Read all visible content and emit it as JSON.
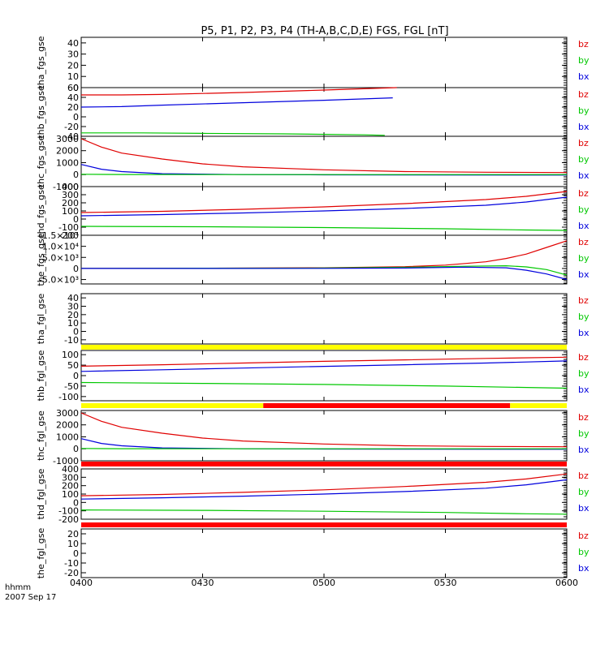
{
  "title": "P5, P1, P2, P3, P4 (TH-A,B,C,D,E) FGS, FGL [nT]",
  "xaxis": {
    "label": "hhmm",
    "date": "2007 Sep 17",
    "ticks": [
      "0400",
      "0430",
      "0500",
      "0530",
      "0600"
    ]
  },
  "colors": {
    "bz": "#e00000",
    "by": "#00c800",
    "bx": "#0000dd",
    "yellow": "#ffff00",
    "red": "#ff0000"
  },
  "chart_data": [
    {
      "type": "line",
      "ylabel": "tha_fgs_gse",
      "ylim": [
        0,
        45
      ],
      "yticks": [
        "0",
        "10",
        "20",
        "30",
        "40"
      ],
      "legend": [
        "bz",
        "by",
        "bx"
      ],
      "series": []
    },
    {
      "type": "line",
      "ylabel": "thb_fgs_gse",
      "ylim": [
        -40,
        60
      ],
      "yticks": [
        "-40",
        "-20",
        "0",
        "20",
        "40",
        "60"
      ],
      "legend": [
        "bz",
        "by",
        "bx"
      ],
      "series": [
        {
          "name": "bz",
          "x": [
            0,
            10,
            20,
            40,
            60,
            78
          ],
          "y": [
            45,
            45,
            46,
            50,
            55,
            60
          ]
        },
        {
          "name": "bx",
          "x": [
            0,
            10,
            20,
            40,
            60,
            77
          ],
          "y": [
            20,
            21,
            24,
            29,
            34,
            39
          ]
        },
        {
          "name": "by",
          "x": [
            0,
            15,
            30,
            50,
            70,
            75
          ],
          "y": [
            -33,
            -33,
            -34,
            -35,
            -37,
            -38
          ]
        }
      ]
    },
    {
      "type": "line",
      "ylabel": "thc_fgs_gse",
      "ylim": [
        -1000,
        3200
      ],
      "yticks": [
        "-1000",
        "0",
        "1000",
        "2000",
        "3000"
      ],
      "legend": [
        "bz",
        "by",
        "bx"
      ],
      "series": [
        {
          "name": "bz",
          "x": [
            0,
            5,
            10,
            20,
            30,
            40,
            60,
            80,
            100,
            120
          ],
          "y": [
            3000,
            2300,
            1800,
            1300,
            900,
            650,
            400,
            250,
            200,
            170
          ]
        },
        {
          "name": "bx",
          "x": [
            0,
            5,
            10,
            20,
            40,
            60,
            80,
            120
          ],
          "y": [
            850,
            450,
            250,
            80,
            0,
            -20,
            -30,
            -40
          ]
        },
        {
          "name": "by",
          "x": [
            0,
            10,
            30,
            60,
            90,
            120
          ],
          "y": [
            30,
            10,
            0,
            0,
            0,
            0
          ]
        }
      ]
    },
    {
      "type": "line",
      "ylabel": "thd_fgs_gse",
      "ylim": [
        -200,
        400
      ],
      "yticks": [
        "-200",
        "-100",
        "0",
        "100",
        "200",
        "300",
        "400"
      ],
      "legend": [
        "bz",
        "by",
        "bx"
      ],
      "series": [
        {
          "name": "bz",
          "x": [
            0,
            20,
            40,
            60,
            80,
            100,
            110,
            120
          ],
          "y": [
            80,
            95,
            120,
            150,
            190,
            240,
            280,
            340
          ]
        },
        {
          "name": "bx",
          "x": [
            0,
            20,
            40,
            60,
            80,
            100,
            110,
            120
          ],
          "y": [
            40,
            55,
            75,
            100,
            130,
            170,
            210,
            270
          ]
        },
        {
          "name": "by",
          "x": [
            0,
            30,
            60,
            90,
            110,
            120
          ],
          "y": [
            -90,
            -95,
            -105,
            -120,
            -135,
            -140
          ]
        }
      ]
    },
    {
      "type": "line",
      "ylabel": "the_fgs_gse",
      "ylim": [
        -7000,
        15000
      ],
      "yticks": [
        "-5.0×10³",
        "0",
        "5.0×10³",
        "1.0×10⁴",
        "1.5×10⁴"
      ],
      "legend": [
        "bz",
        "by",
        "bx"
      ],
      "series": [
        {
          "name": "bz",
          "x": [
            0,
            30,
            60,
            80,
            90,
            100,
            105,
            110,
            115,
            120
          ],
          "y": [
            0,
            100,
            300,
            800,
            1500,
            3000,
            4500,
            6500,
            9500,
            12500
          ]
        },
        {
          "name": "by",
          "x": [
            0,
            30,
            60,
            80,
            95,
            105,
            110,
            115,
            120
          ],
          "y": [
            0,
            100,
            200,
            500,
            1000,
            1200,
            700,
            -500,
            -3000
          ]
        },
        {
          "name": "bx",
          "x": [
            0,
            30,
            60,
            80,
            95,
            105,
            110,
            115,
            120
          ],
          "y": [
            0,
            0,
            50,
            200,
            600,
            300,
            -800,
            -2500,
            -5000
          ]
        }
      ]
    },
    {
      "type": "line",
      "ylabel": "tha_fgl_gse",
      "ylim": [
        -15,
        45
      ],
      "yticks": [
        "-10",
        "0",
        "10",
        "20",
        "30",
        "40"
      ],
      "legend": [
        "bz",
        "by",
        "bx"
      ],
      "series": [],
      "mode_bar": [
        {
          "from": 0,
          "to": 120,
          "color": "yellow"
        }
      ]
    },
    {
      "type": "line",
      "ylabel": "thb_fgl_gse",
      "ylim": [
        -120,
        120
      ],
      "yticks": [
        "-100",
        "-50",
        "0",
        "50",
        "100"
      ],
      "legend": [
        "bz",
        "by",
        "bx"
      ],
      "series": [
        {
          "name": "bz",
          "x": [
            0,
            20,
            40,
            60,
            80,
            100,
            120
          ],
          "y": [
            45,
            52,
            60,
            68,
            75,
            82,
            88
          ]
        },
        {
          "name": "bx",
          "x": [
            0,
            20,
            40,
            60,
            80,
            100,
            120
          ],
          "y": [
            20,
            28,
            36,
            44,
            52,
            60,
            70
          ]
        },
        {
          "name": "by",
          "x": [
            0,
            30,
            60,
            90,
            120
          ],
          "y": [
            -33,
            -37,
            -42,
            -50,
            -60
          ]
        }
      ],
      "mode_bar": [
        {
          "from": 0,
          "to": 45,
          "color": "yellow"
        },
        {
          "from": 45,
          "to": 106,
          "color": "red"
        },
        {
          "from": 106,
          "to": 120,
          "color": "yellow"
        }
      ]
    },
    {
      "type": "line",
      "ylabel": "thc_fgl_gse",
      "ylim": [
        -1000,
        3200
      ],
      "yticks": [
        "-1000",
        "0",
        "1000",
        "2000",
        "3000"
      ],
      "legend": [
        "bz",
        "by",
        "bx"
      ],
      "series": [
        {
          "name": "bz",
          "x": [
            0,
            5,
            10,
            20,
            30,
            40,
            60,
            80,
            100,
            120
          ],
          "y": [
            3000,
            2300,
            1800,
            1300,
            900,
            650,
            400,
            250,
            200,
            170
          ]
        },
        {
          "name": "bx",
          "x": [
            0,
            5,
            10,
            20,
            40,
            60,
            80,
            120
          ],
          "y": [
            850,
            450,
            250,
            80,
            0,
            -20,
            -30,
            -40
          ]
        },
        {
          "name": "by",
          "x": [
            0,
            10,
            30,
            60,
            90,
            120
          ],
          "y": [
            30,
            10,
            0,
            0,
            0,
            0
          ]
        }
      ],
      "mode_bar": [
        {
          "from": 0,
          "to": 120,
          "color": "red"
        }
      ]
    },
    {
      "type": "line",
      "ylabel": "thd_fgl_gse",
      "ylim": [
        -200,
        400
      ],
      "yticks": [
        "-200",
        "-100",
        "0",
        "100",
        "200",
        "300",
        "400"
      ],
      "legend": [
        "bz",
        "by",
        "bx"
      ],
      "series": [
        {
          "name": "bz",
          "x": [
            0,
            20,
            40,
            60,
            80,
            100,
            110,
            120
          ],
          "y": [
            80,
            95,
            120,
            150,
            190,
            240,
            280,
            340
          ]
        },
        {
          "name": "bx",
          "x": [
            0,
            20,
            40,
            60,
            80,
            100,
            110,
            120
          ],
          "y": [
            40,
            55,
            75,
            100,
            130,
            170,
            210,
            270
          ]
        },
        {
          "name": "by",
          "x": [
            0,
            30,
            60,
            90,
            110,
            120
          ],
          "y": [
            -90,
            -95,
            -105,
            -120,
            -135,
            -140
          ]
        }
      ],
      "mode_bar": [
        {
          "from": 0,
          "to": 120,
          "color": "red"
        }
      ]
    },
    {
      "type": "line",
      "ylabel": "the_fgl_gse",
      "ylim": [
        -25,
        25
      ],
      "yticks": [
        "-20",
        "-10",
        "0",
        "10",
        "20"
      ],
      "legend": [
        "bz",
        "by",
        "bx"
      ],
      "series": []
    }
  ]
}
